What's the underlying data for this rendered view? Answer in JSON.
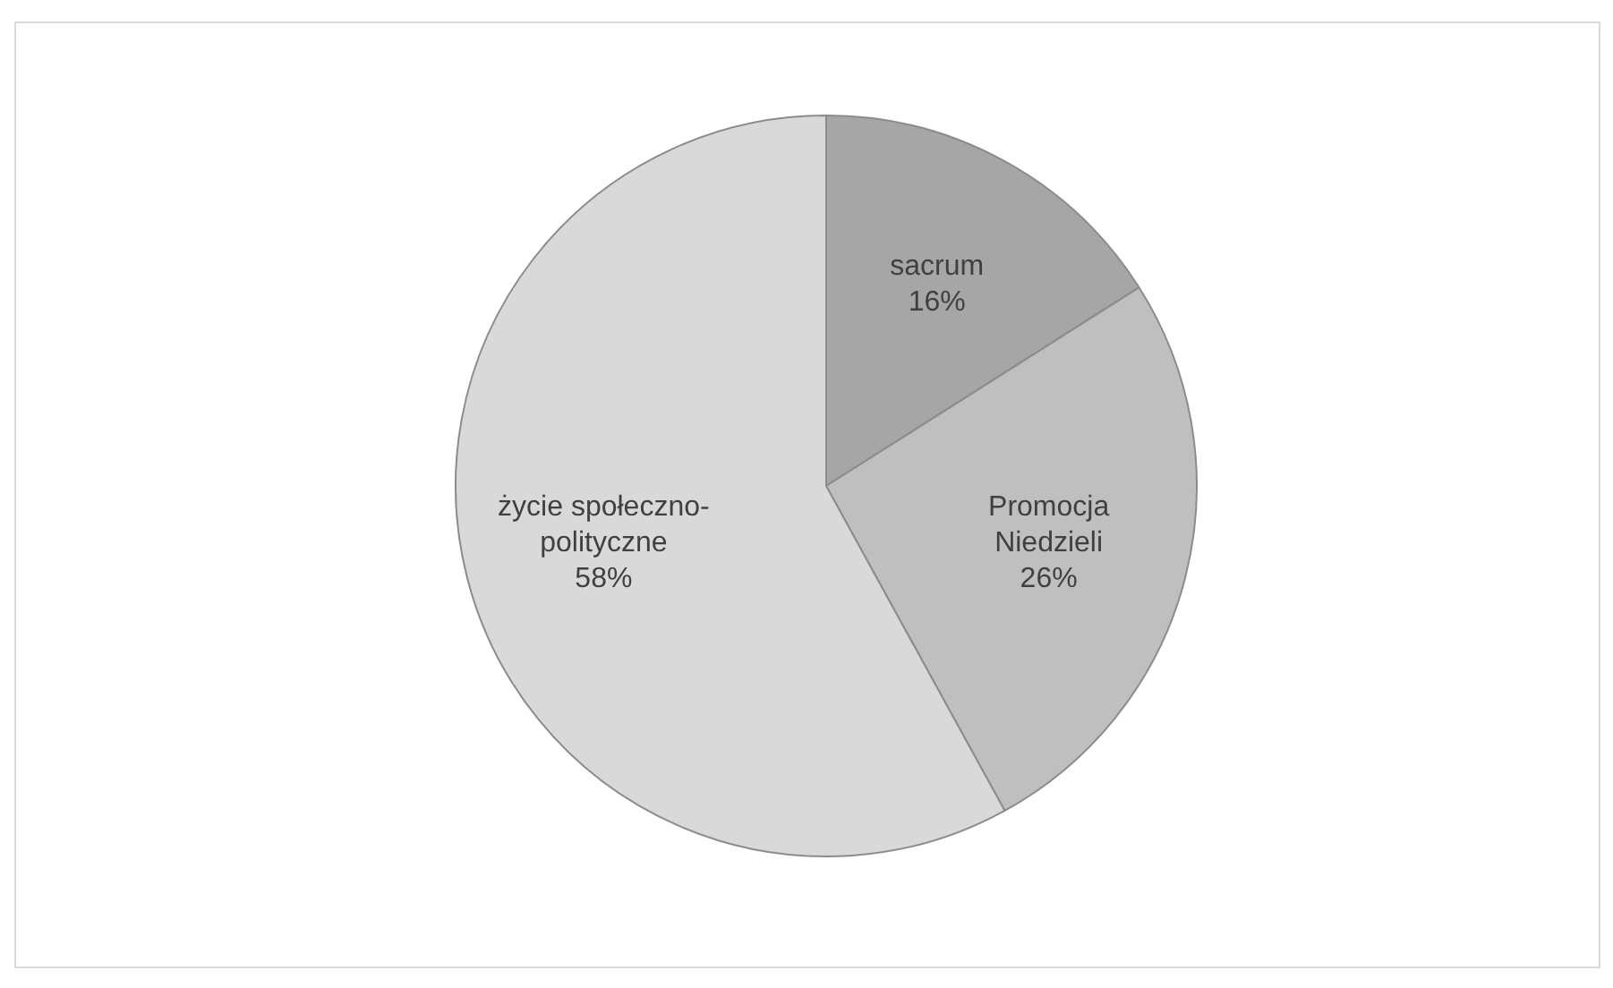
{
  "chart_data": {
    "type": "pie",
    "categories": [
      "sacrum",
      "Promocja Niedzieli",
      "życie społeczno-polityczne"
    ],
    "values": [
      16,
      26,
      58
    ],
    "colors": [
      "#a6a6a6",
      "#bfbfbf",
      "#d9d9d9"
    ],
    "value_labels": [
      "16%",
      "26%",
      "58%"
    ],
    "legend": false
  }
}
